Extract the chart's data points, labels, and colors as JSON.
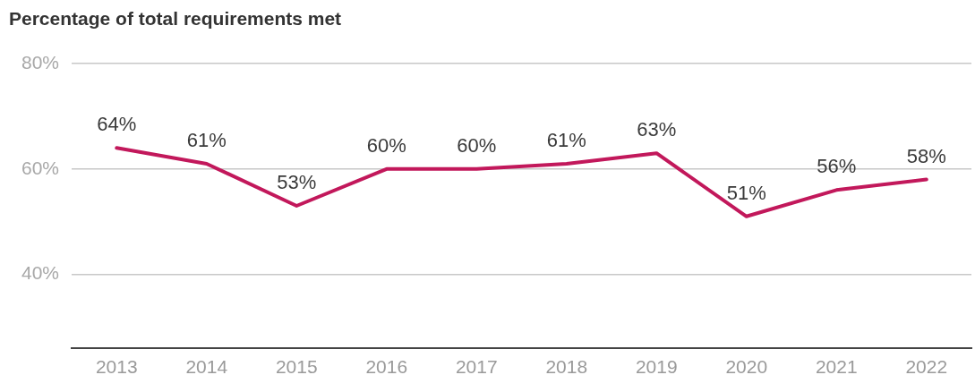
{
  "chart_data": {
    "type": "line",
    "title": "Percentage of total requirements met",
    "categories": [
      "2013",
      "2014",
      "2015",
      "2016",
      "2017",
      "2018",
      "2019",
      "2020",
      "2021",
      "2022"
    ],
    "series": [
      {
        "color": "#c2185b",
        "values": [
          64,
          61,
          53,
          60,
          60,
          61,
          63,
          51,
          56,
          58
        ]
      }
    ],
    "value_labels": [
      "64%",
      "61%",
      "53%",
      "60%",
      "60%",
      "61%",
      "63%",
      "51%",
      "56%",
      "58%"
    ],
    "ylim": [
      26,
      80
    ],
    "yticks": [
      {
        "value": 40,
        "label": "40%"
      },
      {
        "value": 60,
        "label": "60%"
      },
      {
        "value": 80,
        "label": "80%"
      }
    ],
    "grid": "y",
    "legend": false,
    "marker": "none",
    "line_style": "solid"
  }
}
